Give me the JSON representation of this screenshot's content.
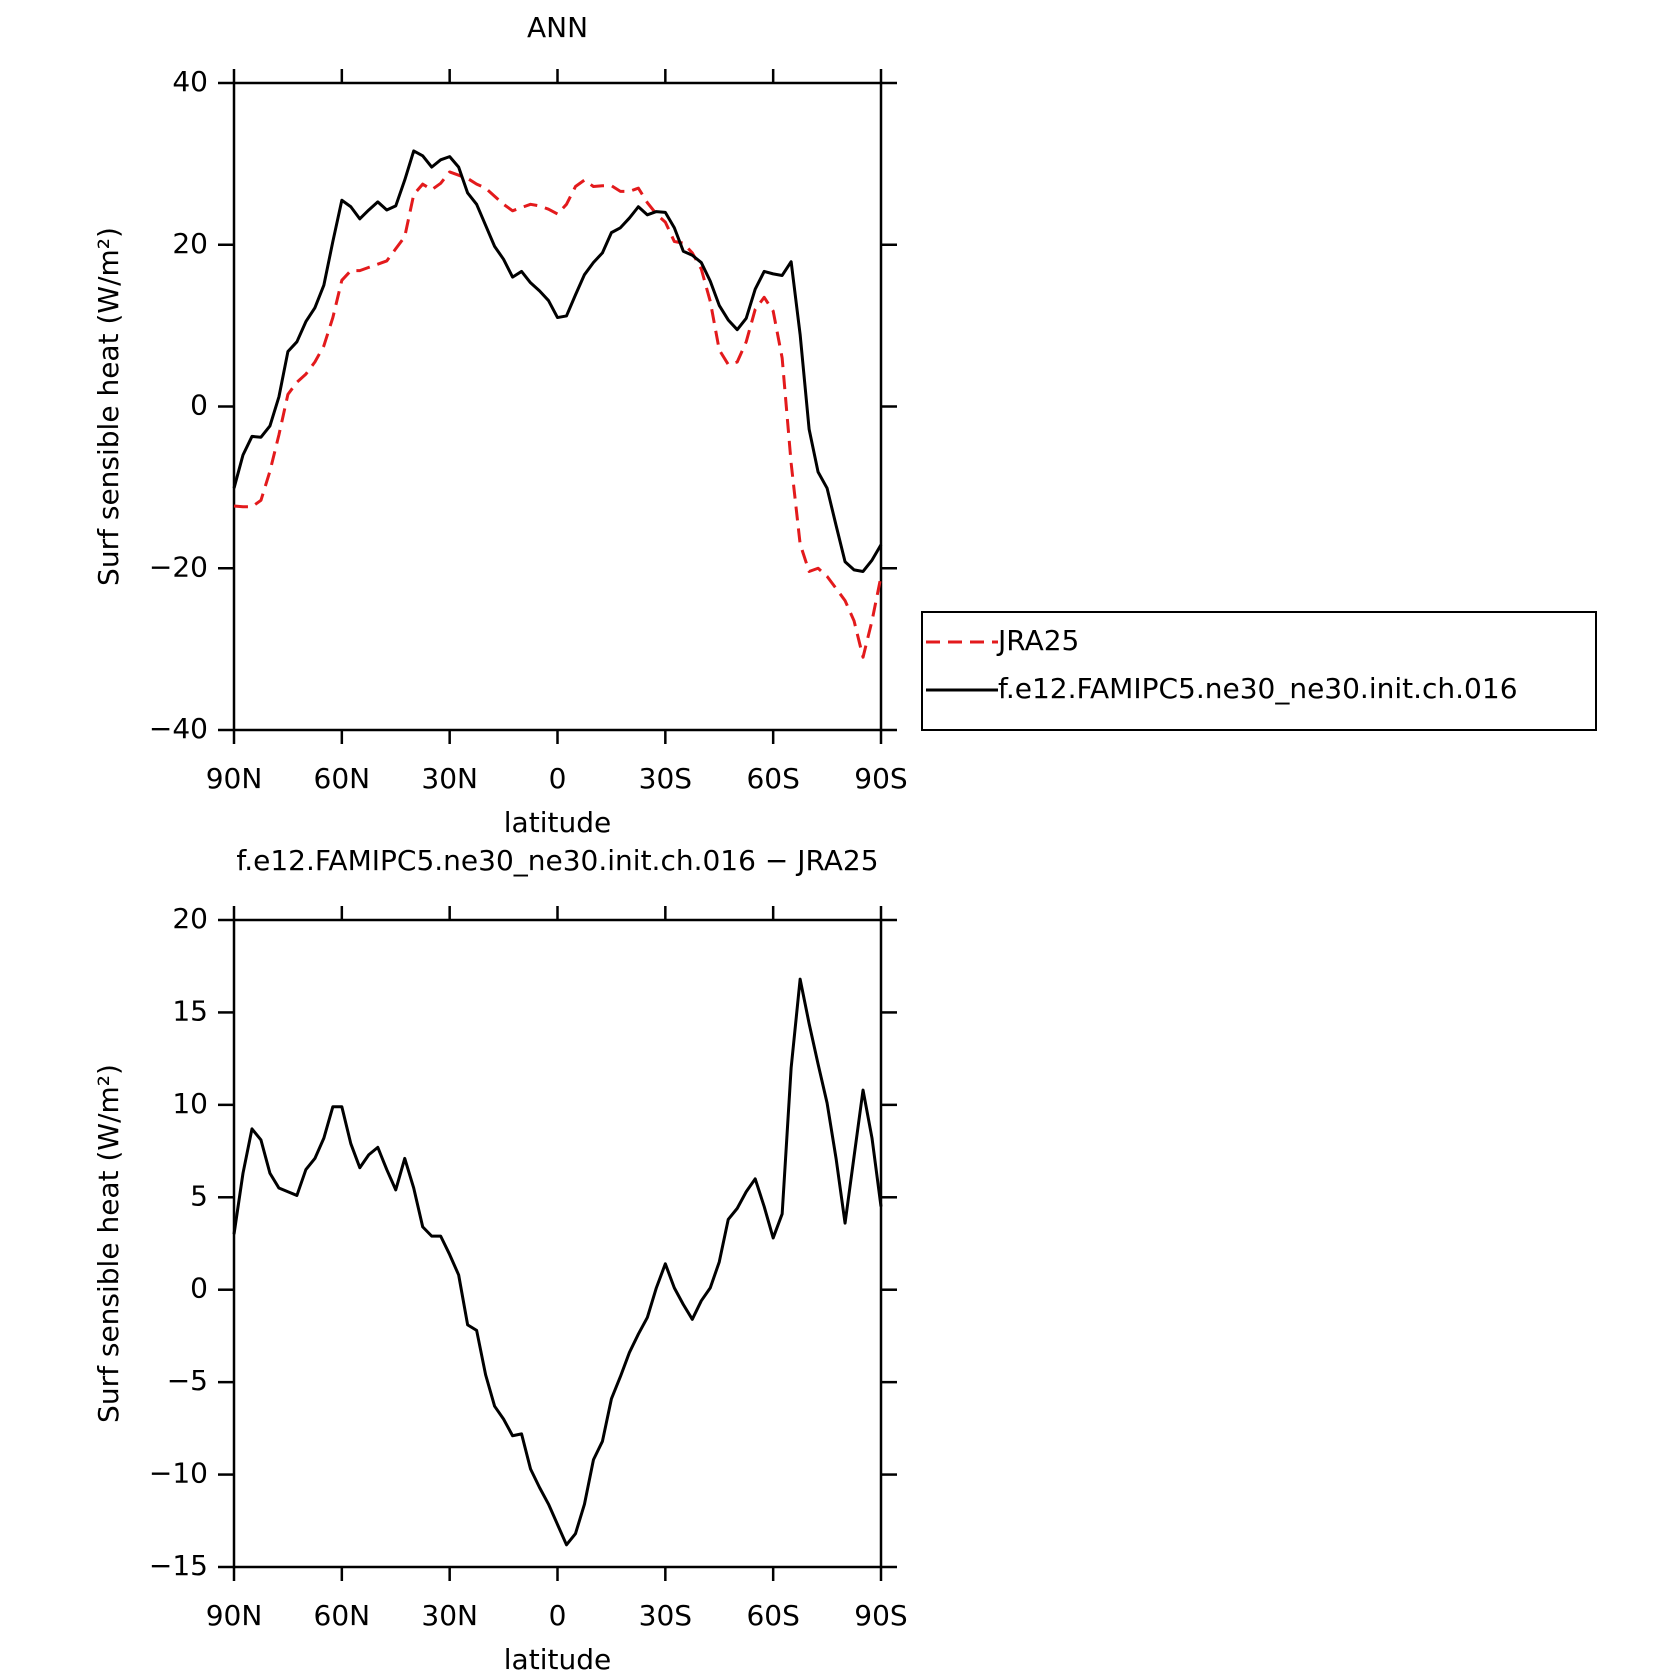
{
  "chart_data": [
    {
      "type": "line",
      "title": "ANN",
      "xlabel": "latitude",
      "ylabel": "Surf sensible heat (W/m²)",
      "x": [
        90,
        87.5,
        85,
        82.5,
        80,
        77.5,
        75,
        72.5,
        70,
        67.5,
        65,
        62.5,
        60,
        57.5,
        55,
        52.5,
        50,
        47.5,
        45,
        42.5,
        40,
        37.5,
        35,
        32.5,
        30,
        27.5,
        25,
        22.5,
        20,
        17.5,
        15,
        12.5,
        10,
        7.5,
        5,
        2.5,
        0,
        -2.5,
        -5,
        -7.5,
        -10,
        -12.5,
        -15,
        -17.5,
        -20,
        -22.5,
        -25,
        -27.5,
        -30,
        -32.5,
        -35,
        -37.5,
        -40,
        -42.5,
        -45,
        -47.5,
        -50,
        -52.5,
        -55,
        -57.5,
        -60,
        -62.5,
        -65,
        -67.5,
        -70,
        -72.5,
        -75,
        -77.5,
        -80,
        -82.5,
        -85,
        -87.5,
        -90
      ],
      "series": [
        {
          "name": "JRA25",
          "color": "#e31a1c",
          "line_style": "dashed",
          "values": [
            -12.3,
            -12.4,
            -12.4,
            -11.6,
            -8,
            -3.5,
            1.5,
            3,
            4,
            5.5,
            7.5,
            11,
            15.6,
            16.8,
            16.8,
            17.2,
            17.6,
            18,
            19.5,
            21,
            26.2,
            27.5,
            26.8,
            27.6,
            29,
            28.6,
            28.2,
            27.5,
            27,
            26,
            25,
            24.2,
            24.6,
            25,
            24.8,
            24.4,
            23.8,
            25,
            27.2,
            28,
            27.2,
            27.3,
            27.3,
            26.6,
            26.6,
            27,
            25.2,
            23.8,
            22.8,
            20.4,
            20.2,
            19,
            17,
            13,
            7,
            5.2,
            5.5,
            8,
            12,
            13.5,
            11.8,
            6,
            -7,
            -17,
            -20.4,
            -20,
            -21,
            -22.5,
            -24,
            -26.5,
            -31,
            -26.5,
            -21
          ]
        },
        {
          "name": "f.e12.FAMIPC5.ne30_ne30.init.ch.016",
          "color": "#000000",
          "line_style": "solid",
          "values": [
            -10.1,
            -6,
            -3.7,
            -3.8,
            -2.4,
            1.2,
            6.8,
            8,
            10.5,
            12.2,
            15,
            20.4,
            25.5,
            24.7,
            23.2,
            24.3,
            25.3,
            24.3,
            24.8,
            28,
            31.6,
            31,
            29.6,
            30.5,
            30.9,
            29.6,
            26.4,
            25,
            22.4,
            19.8,
            18.2,
            16,
            16.7,
            15.3,
            14.3,
            13.1,
            11,
            11.2,
            13.8,
            16.3,
            17.8,
            19,
            21.5,
            22.1,
            23.3,
            24.7,
            23.7,
            24.1,
            24,
            22.1,
            19.2,
            18.7,
            17.8,
            15.5,
            12.5,
            10.7,
            9.5,
            10.9,
            14.5,
            16.7,
            16.4,
            16.2,
            17.9,
            8.9,
            -2.8,
            -8.1,
            -10.1,
            -14.7,
            -19.2,
            -20.2,
            -20.4,
            -19,
            -17.1
          ]
        }
      ],
      "xlim": [
        90,
        -90
      ],
      "xticks": [
        {
          "value": 90,
          "label": "90N"
        },
        {
          "value": 60,
          "label": "60N"
        },
        {
          "value": 30,
          "label": "30N"
        },
        0,
        {
          "value": -30,
          "label": "30S"
        },
        {
          "value": -60,
          "label": "60S"
        },
        {
          "value": -90,
          "label": "90S"
        }
      ],
      "ylim": [
        -40,
        40
      ],
      "yticks": [
        {
          "value": -40,
          "label": "−40"
        },
        {
          "value": -20,
          "label": "−20"
        },
        0,
        20,
        40
      ],
      "legend": "outside-right"
    },
    {
      "type": "line",
      "title": "f.e12.FAMIPC5.ne30_ne30.init.ch.016 − JRA25",
      "xlabel": "latitude",
      "ylabel": "Surf sensible heat (W/m²)",
      "x": [
        90,
        87.5,
        85,
        82.5,
        80,
        77.5,
        75,
        72.5,
        70,
        67.5,
        65,
        62.5,
        60,
        57.5,
        55,
        52.5,
        50,
        47.5,
        45,
        42.5,
        40,
        37.5,
        35,
        32.5,
        30,
        27.5,
        25,
        22.5,
        20,
        17.5,
        15,
        12.5,
        10,
        7.5,
        5,
        2.5,
        0,
        -2.5,
        -5,
        -7.5,
        -10,
        -12.5,
        -15,
        -17.5,
        -20,
        -22.5,
        -25,
        -27.5,
        -30,
        -32.5,
        -35,
        -37.5,
        -40,
        -42.5,
        -45,
        -47.5,
        -50,
        -52.5,
        -55,
        -57.5,
        -60,
        -62.5,
        -65,
        -67.5,
        -70,
        -72.5,
        -75,
        -77.5,
        -80,
        -82.5,
        -85,
        -87.5,
        -90
      ],
      "values": [
        3,
        6.3,
        8.7,
        8.1,
        6.3,
        5.5,
        5.3,
        5.1,
        6.5,
        7.1,
        8.2,
        9.9,
        9.9,
        7.9,
        6.6,
        7.3,
        7.7,
        6.5,
        5.4,
        7.1,
        5.5,
        3.4,
        2.9,
        2.9,
        1.9,
        0.8,
        -1.9,
        -2.2,
        -4.6,
        -6.3,
        -7,
        -7.9,
        -7.8,
        -9.7,
        -10.7,
        -11.6,
        -12.7,
        -13.8,
        -13.2,
        -11.6,
        -9.2,
        -8.2,
        -5.9,
        -4.7,
        -3.4,
        -2.4,
        -1.5,
        0.1,
        1.4,
        0.1,
        -0.8,
        -1.6,
        -0.6,
        0.1,
        1.5,
        3.8,
        4.4,
        5.3,
        6,
        4.5,
        2.8,
        4.1,
        12,
        16.8,
        14.4,
        12.2,
        10.1,
        7.1,
        3.6,
        7.2,
        10.8,
        8.2,
        4.5
      ],
      "color": "#000000",
      "xlim": [
        90,
        -90
      ],
      "xticks": [
        {
          "value": 90,
          "label": "90N"
        },
        {
          "value": 60,
          "label": "60N"
        },
        {
          "value": 30,
          "label": "30N"
        },
        0,
        {
          "value": -30,
          "label": "30S"
        },
        {
          "value": -60,
          "label": "60S"
        },
        {
          "value": -90,
          "label": "90S"
        }
      ],
      "ylim": [
        -15,
        20
      ],
      "yticks": [
        {
          "value": -15,
          "label": "−15"
        },
        {
          "value": -10,
          "label": "−10"
        },
        {
          "value": -5,
          "label": "−5"
        },
        0,
        5,
        10,
        15,
        20
      ]
    }
  ]
}
